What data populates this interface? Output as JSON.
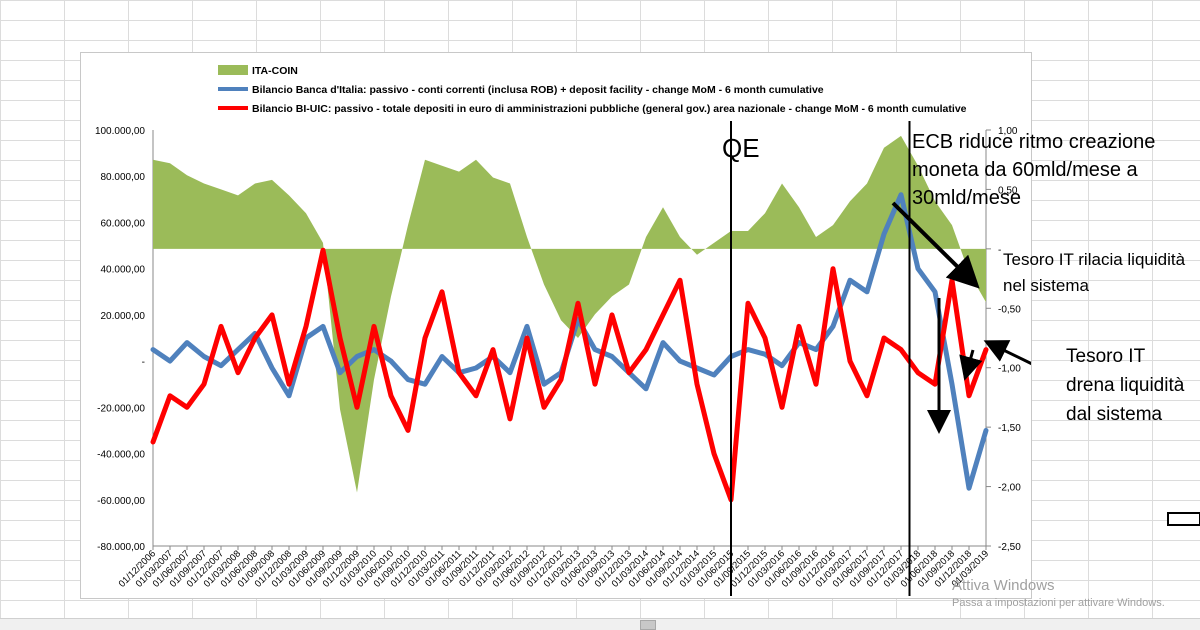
{
  "chart_data": {
    "type": "line",
    "legend": [
      {
        "name": "ITA-COIN",
        "color": "#9bbb59",
        "kind": "area"
      },
      {
        "name": "Bilancio Banca d'Italia: passivo - conti correnti (inclusa ROB) + deposit facility - change MoM - 6 month cumulative",
        "color": "#4f81bd",
        "kind": "line"
      },
      {
        "name": "Bilancio BI-UIC: passivo - totale depositi in euro di amministrazioni pubbliche (general gov.) area nazionale - change MoM - 6 month cumulative",
        "color": "#ff0000",
        "kind": "line"
      }
    ],
    "legend_position": "top-left",
    "left_axis": {
      "ylim": [
        -80000,
        100000
      ],
      "ticks": [
        "100.000,00",
        "80.000,00",
        "60.000,00",
        "40.000,00",
        "20.000,00",
        "-",
        "-20.000,00",
        "-40.000,00",
        "-60.000,00",
        "-80.000,00"
      ]
    },
    "right_axis": {
      "ylim": [
        -2.5,
        1.0
      ],
      "ticks": [
        "1,00",
        "0,50",
        "-",
        "-0,50",
        "-1,00",
        "-1,50",
        "-2,00",
        "-2,50"
      ]
    },
    "x_ticks": [
      "01/12/2006",
      "01/03/2007",
      "01/06/2007",
      "01/09/2007",
      "01/12/2007",
      "01/03/2008",
      "01/06/2008",
      "01/09/2008",
      "01/12/2008",
      "01/03/2009",
      "01/06/2009",
      "01/09/2009",
      "01/12/2009",
      "01/03/2010",
      "01/06/2010",
      "01/09/2010",
      "01/12/2010",
      "01/03/2011",
      "01/06/2011",
      "01/09/2011",
      "01/12/2011",
      "01/03/2012",
      "01/06/2012",
      "01/09/2012",
      "01/12/2012",
      "01/03/2013",
      "01/06/2013",
      "01/09/2013",
      "01/12/2013",
      "01/03/2014",
      "01/06/2014",
      "01/09/2014",
      "01/12/2014",
      "01/03/2015",
      "01/06/2015",
      "01/09/2015",
      "01/12/2015",
      "01/03/2016",
      "01/06/2016",
      "01/09/2016",
      "01/12/2016",
      "01/03/2017",
      "01/06/2017",
      "01/09/2017",
      "01/12/2017",
      "01/03/2018",
      "01/06/2018",
      "01/09/2018",
      "01/12/2018",
      "01/03/2019"
    ],
    "series": [
      {
        "name": "ITA-COIN",
        "axis": "right",
        "values": [
          0.75,
          0.72,
          0.62,
          0.55,
          0.5,
          0.45,
          0.55,
          0.58,
          0.45,
          0.3,
          0.05,
          -1.35,
          -2.05,
          -1.1,
          -0.4,
          0.2,
          0.75,
          0.7,
          0.65,
          0.75,
          0.6,
          0.55,
          0.1,
          -0.3,
          -0.6,
          -0.75,
          -0.55,
          -0.4,
          -0.3,
          0.1,
          0.35,
          0.1,
          -0.05,
          0.05,
          0.15,
          0.15,
          0.3,
          0.55,
          0.35,
          0.1,
          0.2,
          0.4,
          0.55,
          0.85,
          0.95,
          0.7,
          0.4,
          0.2,
          -0.2,
          -0.45
        ]
      },
      {
        "name": "Bilancio Banca d'Italia",
        "axis": "left",
        "values": [
          5000,
          0,
          8000,
          2000,
          -2000,
          5000,
          12000,
          -3000,
          -15000,
          10000,
          15000,
          -5000,
          2000,
          5000,
          0,
          -8000,
          -10000,
          2000,
          -5000,
          -3000,
          2000,
          -5000,
          15000,
          -10000,
          -5000,
          18000,
          5000,
          2000,
          -5000,
          -12000,
          8000,
          0,
          -3000,
          -6000,
          2000,
          5000,
          3000,
          -2000,
          8000,
          5000,
          15000,
          35000,
          30000,
          55000,
          72000,
          40000,
          30000,
          -10000,
          -55000,
          -30000
        ]
      },
      {
        "name": "Bilancio BI-UIC",
        "axis": "left",
        "values": [
          -35000,
          -15000,
          -20000,
          -10000,
          15000,
          -5000,
          10000,
          20000,
          -10000,
          15000,
          48000,
          10000,
          -20000,
          15000,
          -15000,
          -30000,
          10000,
          30000,
          -5000,
          -15000,
          5000,
          -25000,
          10000,
          -20000,
          -8000,
          25000,
          -10000,
          20000,
          -5000,
          5000,
          20000,
          35000,
          -10000,
          -40000,
          -60000,
          25000,
          10000,
          -20000,
          15000,
          -10000,
          40000,
          0,
          -15000,
          10000,
          5000,
          -5000,
          -10000,
          35000,
          -15000,
          5000
        ]
      }
    ],
    "vertical_markers": [
      {
        "label": "QE",
        "x_index": 34
      },
      {
        "label": "",
        "x_index": 44.5
      }
    ],
    "annotations": [
      {
        "text": "ECB riduce ritmo creazione moneta da 60mld/mese a 30mld/mese"
      },
      {
        "text": "Tesoro IT rilacia liquidità nel sistema"
      },
      {
        "text": "Tesoro IT drena liquidità dal sistema"
      }
    ]
  },
  "watermark": {
    "line1": "Attiva Windows",
    "line2": "Passa a impostazioni per attivare Windows."
  }
}
